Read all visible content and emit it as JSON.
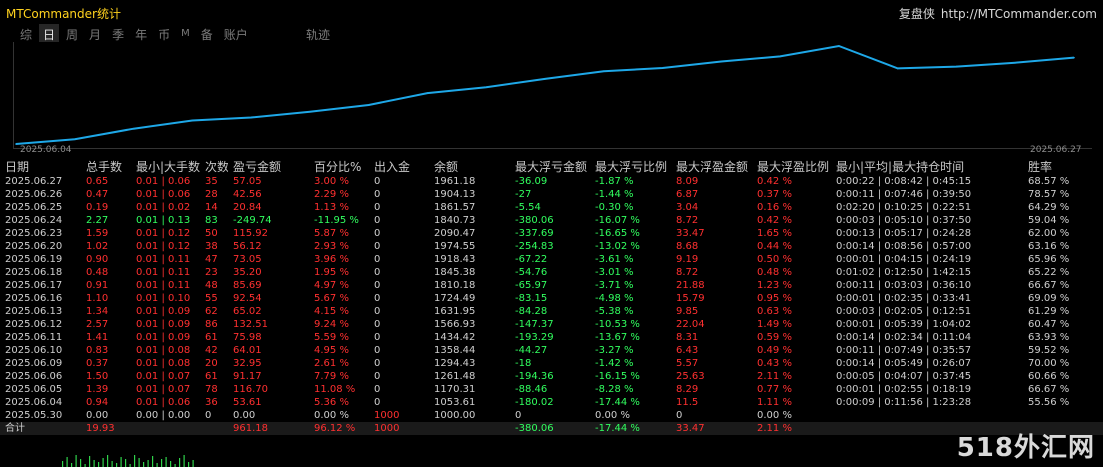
{
  "app": {
    "title": "MTCommander统计",
    "brand": "复盘侠",
    "url": "http://MTCommander.com"
  },
  "tabs": [
    {
      "label": "综",
      "active": false
    },
    {
      "label": "日",
      "active": true
    },
    {
      "label": "周",
      "active": false
    },
    {
      "label": "月",
      "active": false
    },
    {
      "label": "季",
      "active": false
    },
    {
      "label": "年",
      "active": false
    },
    {
      "label": "币",
      "active": false
    },
    {
      "label": "M",
      "active": false
    },
    {
      "label": "备",
      "active": false
    },
    {
      "label": "账户",
      "active": false
    }
  ],
  "track_label": "轨迹",
  "chart_data": {
    "type": "line",
    "x_start_label": "2025.06.04",
    "x_end_label": "2025.06.27",
    "line_color": "#1ea8e8",
    "series": [
      {
        "values": [
          1000.0,
          1053.61,
          1170.31,
          1261.48,
          1294.43,
          1358.44,
          1434.42,
          1566.93,
          1631.95,
          1724.49,
          1810.18,
          1845.38,
          1918.43,
          1974.55,
          2090.47,
          1840.73,
          1861.57,
          1904.13,
          1961.18
        ]
      }
    ]
  },
  "table": {
    "headers": [
      "日期",
      "总手数",
      "最小|大手数",
      "次数",
      "盈亏金额",
      "百分比%",
      "出入金",
      "余额",
      "最大浮亏金额",
      "最大浮亏比例",
      "最大浮盈金额",
      "最大浮盈比例",
      "最小|平均|最大持仓时间",
      "胜率"
    ],
    "rows": [
      [
        "2025.06.27",
        "0.65",
        "0.01 | 0.06",
        "35",
        "57.05",
        "3.00 %",
        "0",
        "1961.18",
        "-36.09",
        "-1.87 %",
        "8.09",
        "0.42 %",
        "0:00:22 | 0:08:42 | 0:45:15",
        "68.57 %"
      ],
      [
        "2025.06.26",
        "0.47",
        "0.01 | 0.06",
        "28",
        "42.56",
        "2.29 %",
        "0",
        "1904.13",
        "-27",
        "-1.44 %",
        "6.87",
        "0.37 %",
        "0:00:11 | 0:07:46 | 0:39:50",
        "78.57 %"
      ],
      [
        "2025.06.25",
        "0.19",
        "0.01 | 0.02",
        "14",
        "20.84",
        "1.13 %",
        "0",
        "1861.57",
        "-5.54",
        "-0.30 %",
        "3.04",
        "0.16 %",
        "0:02:20 | 0:10:25 | 0:22:51",
        "64.29 %"
      ],
      [
        "2025.06.24",
        "2.27",
        "0.01 | 0.13",
        "83",
        "-249.74",
        "-11.95 %",
        "0",
        "1840.73",
        "-380.06",
        "-16.07 %",
        "8.72",
        "0.42 %",
        "0:00:03 | 0:05:10 | 0:37:50",
        "59.04 %"
      ],
      [
        "2025.06.23",
        "1.59",
        "0.01 | 0.12",
        "50",
        "115.92",
        "5.87 %",
        "0",
        "2090.47",
        "-337.69",
        "-16.65 %",
        "33.47",
        "1.65 %",
        "0:00:13 | 0:05:17 | 0:24:28",
        "62.00 %"
      ],
      [
        "2025.06.20",
        "1.02",
        "0.01 | 0.12",
        "38",
        "56.12",
        "2.93 %",
        "0",
        "1974.55",
        "-254.83",
        "-13.02 %",
        "8.68",
        "0.44 %",
        "0:00:14 | 0:08:56 | 0:57:00",
        "63.16 %"
      ],
      [
        "2025.06.19",
        "0.90",
        "0.01 | 0.11",
        "47",
        "73.05",
        "3.96 %",
        "0",
        "1918.43",
        "-67.22",
        "-3.61 %",
        "9.19",
        "0.50 %",
        "0:00:01 | 0:04:15 | 0:24:19",
        "65.96 %"
      ],
      [
        "2025.06.18",
        "0.48",
        "0.01 | 0.11",
        "23",
        "35.20",
        "1.95 %",
        "0",
        "1845.38",
        "-54.76",
        "-3.01 %",
        "8.72",
        "0.48 %",
        "0:01:02 | 0:12:50 | 1:42:15",
        "65.22 %"
      ],
      [
        "2025.06.17",
        "0.91",
        "0.01 | 0.11",
        "48",
        "85.69",
        "4.97 %",
        "0",
        "1810.18",
        "-65.97",
        "-3.71 %",
        "21.88",
        "1.23 %",
        "0:00:11 | 0:03:03 | 0:36:10",
        "66.67 %"
      ],
      [
        "2025.06.16",
        "1.10",
        "0.01 | 0.10",
        "55",
        "92.54",
        "5.67 %",
        "0",
        "1724.49",
        "-83.15",
        "-4.98 %",
        "15.79",
        "0.95 %",
        "0:00:01 | 0:02:35 | 0:33:41",
        "69.09 %"
      ],
      [
        "2025.06.13",
        "1.34",
        "0.01 | 0.09",
        "62",
        "65.02",
        "4.15 %",
        "0",
        "1631.95",
        "-84.28",
        "-5.38 %",
        "9.85",
        "0.63 %",
        "0:00:03 | 0:02:05 | 0:12:51",
        "61.29 %"
      ],
      [
        "2025.06.12",
        "2.57",
        "0.01 | 0.09",
        "86",
        "132.51",
        "9.24 %",
        "0",
        "1566.93",
        "-147.37",
        "-10.53 %",
        "22.04",
        "1.49 %",
        "0:00:01 | 0:05:39 | 1:04:02",
        "60.47 %"
      ],
      [
        "2025.06.11",
        "1.41",
        "0.01 | 0.09",
        "61",
        "75.98",
        "5.59 %",
        "0",
        "1434.42",
        "-193.29",
        "-13.67 %",
        "8.31",
        "0.59 %",
        "0:00:14 | 0:02:34 | 0:11:04",
        "63.93 %"
      ],
      [
        "2025.06.10",
        "0.83",
        "0.01 | 0.08",
        "42",
        "64.01",
        "4.95 %",
        "0",
        "1358.44",
        "-44.27",
        "-3.27 %",
        "6.43",
        "0.49 %",
        "0:00:11 | 0:07:49 | 0:35:57",
        "59.52 %"
      ],
      [
        "2025.06.09",
        "0.37",
        "0.01 | 0.08",
        "20",
        "32.95",
        "2.61 %",
        "0",
        "1294.43",
        "-18",
        "-1.42 %",
        "5.57",
        "0.43 %",
        "0:00:14 | 0:05:49 | 0:26:07",
        "70.00 %"
      ],
      [
        "2025.06.06",
        "1.50",
        "0.01 | 0.07",
        "61",
        "91.17",
        "7.79 %",
        "0",
        "1261.48",
        "-194.36",
        "-16.15 %",
        "25.63",
        "2.11 %",
        "0:00:05 | 0:04:07 | 0:37:45",
        "60.66 %"
      ],
      [
        "2025.06.05",
        "1.39",
        "0.01 | 0.07",
        "78",
        "116.70",
        "11.08 %",
        "0",
        "1170.31",
        "-88.46",
        "-8.28 %",
        "8.29",
        "0.77 %",
        "0:00:01 | 0:02:55 | 0:18:19",
        "66.67 %"
      ],
      [
        "2025.06.04",
        "0.94",
        "0.01 | 0.06",
        "36",
        "53.61",
        "5.36 %",
        "0",
        "1053.61",
        "-180.02",
        "-17.44 %",
        "11.5",
        "1.11 %",
        "0:00:09 | 0:11:56 | 1:23:28",
        "55.56 %"
      ],
      [
        "2025.05.30",
        "0.00",
        "0.00 | 0.00",
        "0",
        "0.00",
        "0.00 %",
        "1000",
        "1000.00",
        "0",
        "0.00 %",
        "0",
        "0.00 %",
        "",
        ""
      ]
    ],
    "totals": [
      "合计",
      "19.93",
      "",
      "",
      "961.18",
      "96.12 %",
      "1000",
      "",
      "-380.06",
      "-17.44 %",
      "33.47",
      "2.11 %",
      "",
      ""
    ]
  },
  "colors": {
    "loss": "#ff3030",
    "gain": "#31ff5f",
    "neutral": "#cfcfcf",
    "title": "#ffd21e"
  },
  "watermark": "518外汇网"
}
